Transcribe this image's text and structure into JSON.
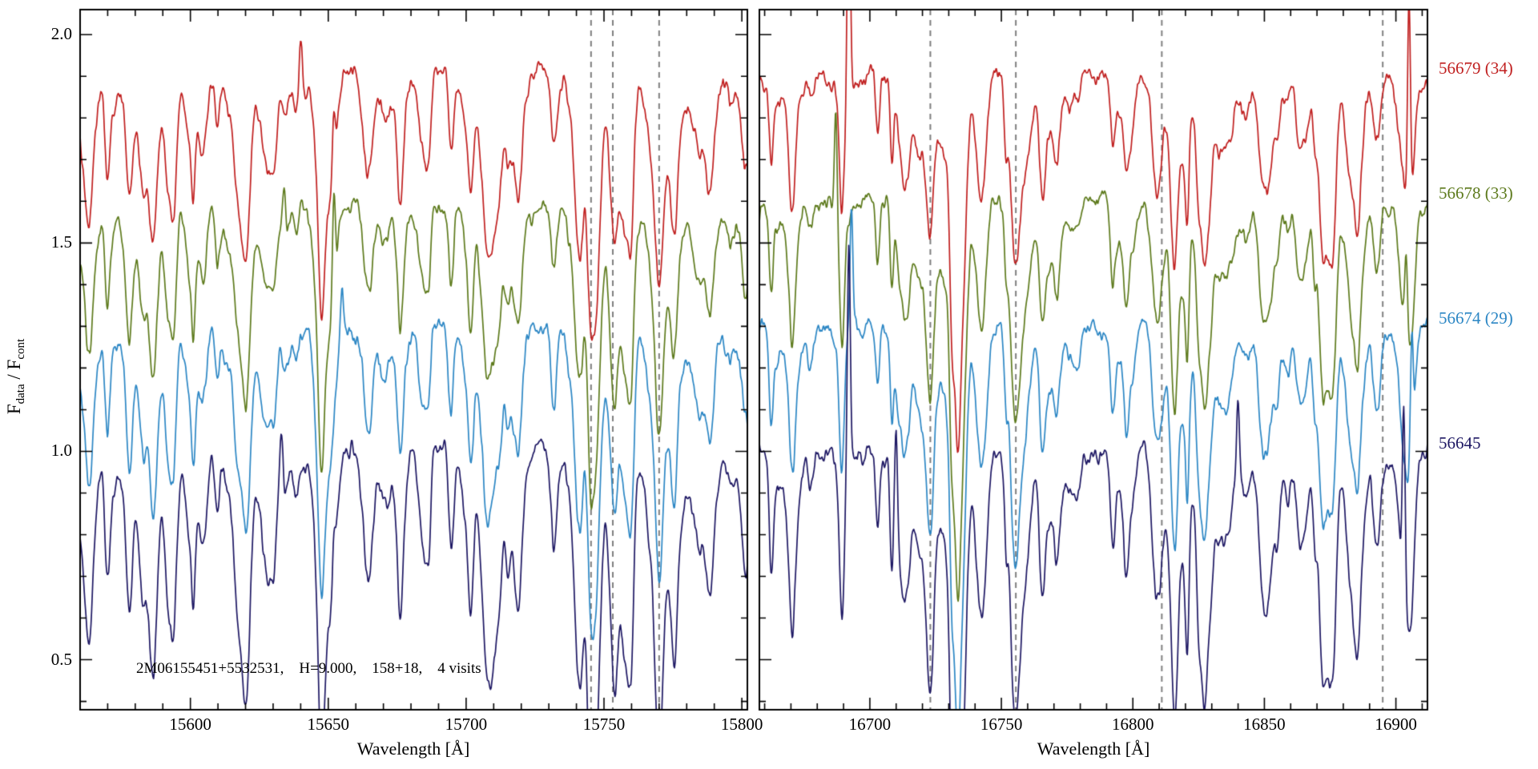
{
  "figure": {
    "annotation": "2M06155451+5532531,    H=9.000,    158+18,    4 visits",
    "ylabel": {
      "f1": "F",
      "sub1": "data",
      "mid": " / F",
      "sub2": "cont"
    }
  },
  "chart_data": {
    "type": "line",
    "title": "",
    "ylabel": "F_data / F_cont",
    "ylim": [
      0.38,
      2.06
    ],
    "yticks": [
      0.5,
      1.0,
      1.5,
      2.0
    ],
    "y_minor_step": 0.1,
    "grid": false,
    "legend_position": "right-outside",
    "annotation": "2M06155451+5532531,  H=9.000,  158+18,  4 visits",
    "panels": [
      {
        "xlabel": "Wavelength [Å]",
        "xlim": [
          15560,
          15802
        ],
        "xticks": [
          15600,
          15650,
          15700,
          15750,
          15800
        ],
        "minor_tick_step": 10,
        "dashed_lines": [
          15745.3,
          15753.2,
          15770.0
        ],
        "marked_line_depths": [
          [
            0.2,
            0.3,
            0.28,
            0.32
          ],
          [
            0.26,
            0.38,
            0.33,
            0.42
          ],
          [
            0.3,
            0.33,
            0.35,
            0.45
          ]
        ]
      },
      {
        "xlabel": "Wavelength [Å]",
        "xlim": [
          16658,
          16912
        ],
        "xticks": [
          16700,
          16750,
          16800,
          16850,
          16900
        ],
        "minor_tick_step": 10,
        "dashed_lines": [
          16723.0,
          16755.5,
          16811.0,
          16895.0
        ],
        "marked_line_depths": [
          [
            0.24,
            0.34,
            0.36,
            0.44
          ],
          [
            0.3,
            0.4,
            0.4,
            0.47
          ],
          [
            0.06,
            0.06,
            0.06,
            0.08
          ],
          [
            0.04,
            0.04,
            0.04,
            0.05
          ]
        ]
      }
    ],
    "series": [
      {
        "label": "56679 (34)",
        "color": "#c01f1f",
        "offset": 1.9,
        "depth_scale": 0.95,
        "spikes": [
          [
            {
              "x": 15640,
              "h": 0.12
            },
            {
              "x": 15652,
              "h": 0.16
            }
          ],
          [
            {
              "x": 16692,
              "h": 0.6
            },
            {
              "x": 16905,
              "h": 0.55
            }
          ]
        ]
      },
      {
        "label": "56678 (33)",
        "color": "#5d7a1c",
        "offset": 1.6,
        "depth_scale": 1.0,
        "spikes": [
          [
            {
              "x": 15634,
              "h": 0.13
            },
            {
              "x": 15652,
              "h": 0.25
            }
          ],
          [
            {
              "x": 16687,
              "h": 0.26
            },
            {
              "x": 16904,
              "h": 0.18
            }
          ]
        ]
      },
      {
        "label": "56674 (29)",
        "color": "#2b86c4",
        "offset": 1.3,
        "depth_scale": 1.05,
        "spikes": [
          [
            {
              "x": 15655,
              "h": 0.12
            }
          ],
          [
            {
              "x": 16693,
              "h": 0.3
            },
            {
              "x": 16906,
              "h": 0.33
            }
          ]
        ]
      },
      {
        "label": "56645",
        "color": "#1d1763",
        "offset": 1.0,
        "depth_scale": 1.25,
        "spikes": [
          [
            {
              "x": 15633,
              "h": 0.13
            },
            {
              "x": 15652,
              "h": 0.12
            }
          ],
          [
            {
              "x": 16692,
              "h": 0.55
            },
            {
              "x": 16710,
              "h": 0.2
            },
            {
              "x": 16840,
              "h": 0.2
            },
            {
              "x": 16903,
              "h": 0.45
            }
          ]
        ]
      }
    ]
  }
}
